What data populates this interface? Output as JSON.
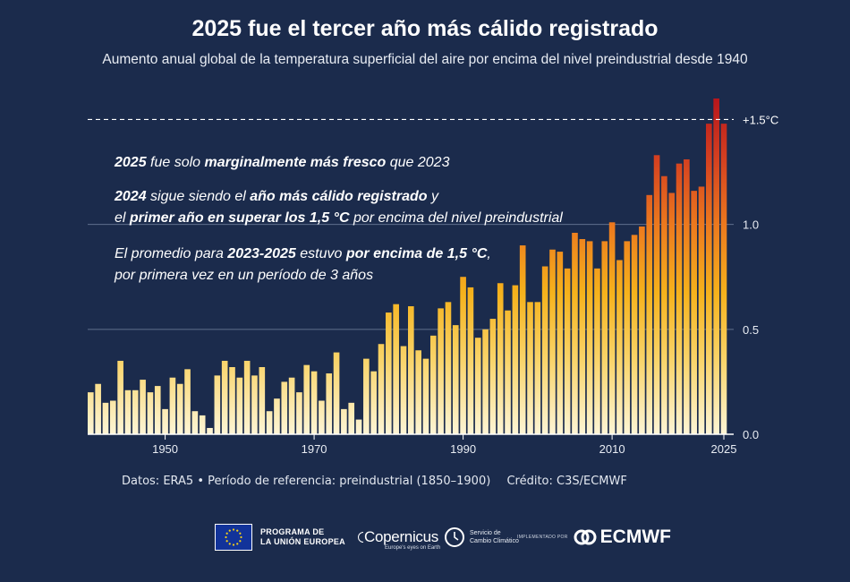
{
  "title": "2025 fue el tercer año más cálido registrado",
  "subtitle": "Aumento anual global de la temperatura superficial del aire por encima del nivel preindustrial desde 1940",
  "annotations": {
    "a1": {
      "p1": "2025",
      "p2": " fue solo ",
      "p3": "marginalmente más fresco",
      "p4": " que 2023"
    },
    "a2": {
      "l1p1": "2024",
      "l1p2": " sigue siendo el ",
      "l1p3": "año más cálido registrado",
      "l1p4": " y",
      "l2p1": "el ",
      "l2p2": "primer año en superar los 1,5 °C",
      "l2p3": " por encima del nivel preindustrial"
    },
    "a3": {
      "l1p1": "El promedio para ",
      "l1p2": "2023-2025",
      "l1p3": " estuvo ",
      "l1p4": "por encima de 1,5 °C",
      "l1p5": ",",
      "l2": "por primera vez en un período de 3 años"
    }
  },
  "footer": {
    "data_source": "Datos: ERA5 • Período de referencia: preindustrial (1850–1900)",
    "credit": "Crédito: C3S/ECMWF"
  },
  "logos": {
    "eu": {
      "line1": "PROGRAMA DE",
      "line2": "LA UNIÓN EUROPEA",
      "icon": "eu-flag-icon"
    },
    "copernicus": {
      "word": "Copernicus",
      "tagline": "Europe's eyes on Earth",
      "icon": "copernicus-logo-icon"
    },
    "c3s": {
      "line1": "Servicio de",
      "line2": "Cambio Climático",
      "icon": "c3s-logo-icon"
    },
    "implemented": "IMPLEMENTADO POR",
    "ecmwf": {
      "word": "ECMWF",
      "icon": "ecmwf-logo-icon"
    }
  },
  "colors": {
    "background": "#1b2b4c",
    "bar_low": "#fdf5d6",
    "bar_mid": "#f5b21c",
    "bar_high": "#b8161c"
  },
  "chart_data": {
    "type": "bar",
    "x_start": 1940,
    "x_end": 2025,
    "x_ticks": [
      "1950",
      "1970",
      "1990",
      "2010",
      "2025"
    ],
    "y_ticks": [
      "0.0",
      "0.5",
      "1.0"
    ],
    "ylim": [
      0,
      1.6
    ],
    "threshold": {
      "value": 1.5,
      "label": "+1.5°C",
      "style": "dashed"
    },
    "grid": true,
    "values": [
      0.2,
      0.24,
      0.15,
      0.16,
      0.35,
      0.21,
      0.21,
      0.26,
      0.2,
      0.23,
      0.12,
      0.27,
      0.24,
      0.31,
      0.11,
      0.09,
      0.03,
      0.28,
      0.35,
      0.32,
      0.27,
      0.35,
      0.28,
      0.32,
      0.11,
      0.17,
      0.25,
      0.27,
      0.2,
      0.33,
      0.3,
      0.16,
      0.29,
      0.39,
      0.12,
      0.15,
      0.07,
      0.36,
      0.3,
      0.43,
      0.58,
      0.62,
      0.42,
      0.61,
      0.4,
      0.36,
      0.47,
      0.6,
      0.63,
      0.52,
      0.75,
      0.7,
      0.46,
      0.5,
      0.55,
      0.72,
      0.59,
      0.71,
      0.9,
      0.63,
      0.63,
      0.8,
      0.88,
      0.87,
      0.79,
      0.96,
      0.93,
      0.92,
      0.79,
      0.92,
      1.01,
      0.83,
      0.92,
      0.95,
      0.99,
      1.14,
      1.33,
      1.23,
      1.15,
      1.29,
      1.31,
      1.16,
      1.18,
      1.48,
      1.6,
      1.48
    ]
  }
}
